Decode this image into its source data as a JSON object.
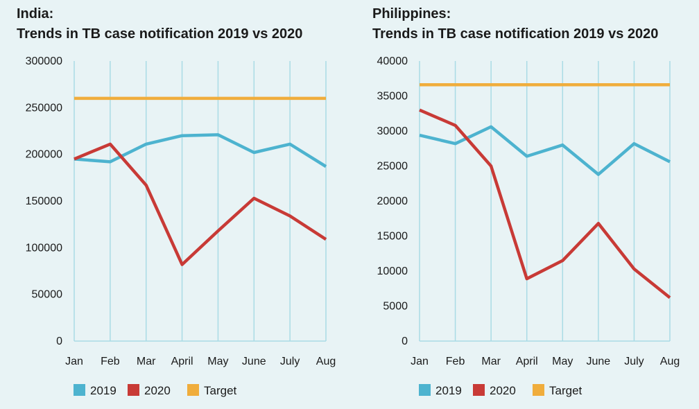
{
  "colors": {
    "series_2019": "#4db3cf",
    "series_2020": "#c83a36",
    "target": "#f0ad3c",
    "grid": "#a9dbe5",
    "background": "#e8f3f5"
  },
  "chart_data": [
    {
      "type": "line",
      "title_line1": "India:",
      "title_line2": "Trends in TB case notification 2019 vs 2020",
      "categories": [
        "Jan",
        "Feb",
        "Mar",
        "April",
        "May",
        "June",
        "July",
        "Aug"
      ],
      "ylim": [
        0,
        300000
      ],
      "yticks": [
        0,
        50000,
        100000,
        150000,
        200000,
        250000,
        300000
      ],
      "grid": "vertical",
      "legend_position": "bottom-left",
      "series": [
        {
          "name": "2019",
          "color_key": "series_2019",
          "values": [
            195000,
            192000,
            211000,
            220000,
            221000,
            202000,
            211000,
            187000
          ]
        },
        {
          "name": "2020",
          "color_key": "series_2020",
          "values": [
            195000,
            211000,
            167000,
            82000,
            118000,
            153000,
            134000,
            109000
          ]
        },
        {
          "name": "Target",
          "color_key": "target",
          "values": [
            260000,
            260000,
            260000,
            260000,
            260000,
            260000,
            260000,
            260000
          ]
        }
      ]
    },
    {
      "type": "line",
      "title_line1": "Philippines:",
      "title_line2": "Trends in TB case notification 2019 vs 2020",
      "categories": [
        "Jan",
        "Feb",
        "Mar",
        "April",
        "May",
        "June",
        "July",
        "Aug"
      ],
      "ylim": [
        0,
        40000
      ],
      "yticks": [
        0,
        5000,
        10000,
        15000,
        20000,
        25000,
        30000,
        35000,
        40000
      ],
      "grid": "vertical",
      "legend_position": "bottom-left",
      "series": [
        {
          "name": "2019",
          "color_key": "series_2019",
          "values": [
            29400,
            28200,
            30600,
            26400,
            28000,
            23800,
            28200,
            25600
          ]
        },
        {
          "name": "2020",
          "color_key": "series_2020",
          "values": [
            33000,
            30800,
            25000,
            8900,
            11500,
            16800,
            10300,
            6200
          ]
        },
        {
          "name": "Target",
          "color_key": "target",
          "values": [
            36600,
            36600,
            36600,
            36600,
            36600,
            36600,
            36600,
            36600
          ]
        }
      ]
    }
  ]
}
